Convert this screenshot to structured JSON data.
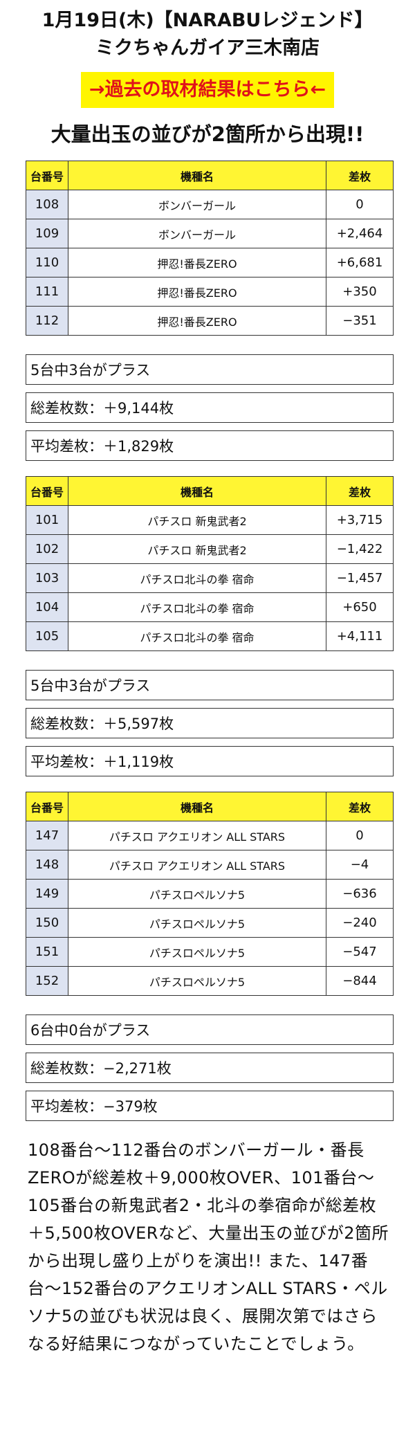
{
  "header": {
    "title_line1": "1月19日(木)【NARABUレジェンド】",
    "title_line2": "ミクちゃんガイア三木南店",
    "link_label": "→過去の取材結果はこちら←",
    "headline": "大量出玉の並びが2箇所から出現!!"
  },
  "colors": {
    "header_bg": "#fff533",
    "number_bg": "#dde3f1",
    "link_bg": "#fff500",
    "link_text": "#e0121a"
  },
  "table_headers": {
    "number": "台番号",
    "model": "機種名",
    "diff": "差枚"
  },
  "groups": [
    {
      "rows": [
        {
          "no": "108",
          "model": "ボンバーガール",
          "diff": "0"
        },
        {
          "no": "109",
          "model": "ボンバーガール",
          "diff": "+2,464"
        },
        {
          "no": "110",
          "model": "押忍!番長ZERO",
          "diff": "+6,681"
        },
        {
          "no": "111",
          "model": "押忍!番長ZERO",
          "diff": "+350"
        },
        {
          "no": "112",
          "model": "押忍!番長ZERO",
          "diff": "−351"
        }
      ],
      "summary": [
        "5台中3台がプラス",
        "総差枚数：＋9,144枚",
        "平均差枚：＋1,829枚"
      ]
    },
    {
      "rows": [
        {
          "no": "101",
          "model": "パチスロ 新鬼武者2",
          "diff": "+3,715"
        },
        {
          "no": "102",
          "model": "パチスロ 新鬼武者2",
          "diff": "−1,422"
        },
        {
          "no": "103",
          "model": "パチスロ北斗の拳 宿命",
          "diff": "−1,457"
        },
        {
          "no": "104",
          "model": "パチスロ北斗の拳 宿命",
          "diff": "+650"
        },
        {
          "no": "105",
          "model": "パチスロ北斗の拳 宿命",
          "diff": "+4,111"
        }
      ],
      "summary": [
        "5台中3台がプラス",
        "総差枚数：＋5,597枚",
        "平均差枚：＋1,119枚"
      ]
    },
    {
      "rows": [
        {
          "no": "147",
          "model": "パチスロ アクエリオン ALL STARS",
          "diff": "0"
        },
        {
          "no": "148",
          "model": "パチスロ アクエリオン ALL STARS",
          "diff": "−4"
        },
        {
          "no": "149",
          "model": "パチスロペルソナ5",
          "diff": "−636"
        },
        {
          "no": "150",
          "model": "パチスロペルソナ5",
          "diff": "−240"
        },
        {
          "no": "151",
          "model": "パチスロペルソナ5",
          "diff": "−547"
        },
        {
          "no": "152",
          "model": "パチスロペルソナ5",
          "diff": "−844"
        }
      ],
      "summary": [
        "6台中0台がプラス",
        "総差枚数：−2,271枚",
        "平均差枚：−379枚"
      ]
    }
  ],
  "paragraph": "108番台〜112番台のボンバーガール・番長ZEROが総差枚＋9,000枚OVER、101番台〜105番台の新鬼武者2・北斗の拳宿命が総差枚＋5,500枚OVERなど、大量出玉の並びが2箇所から出現し盛り上がりを演出!! また、147番台〜152番台のアクエリオンALL STARS・ペルソナ5の並びも状況は良く、展開次第ではさらなる好結果につながっていたことでしょう。"
}
